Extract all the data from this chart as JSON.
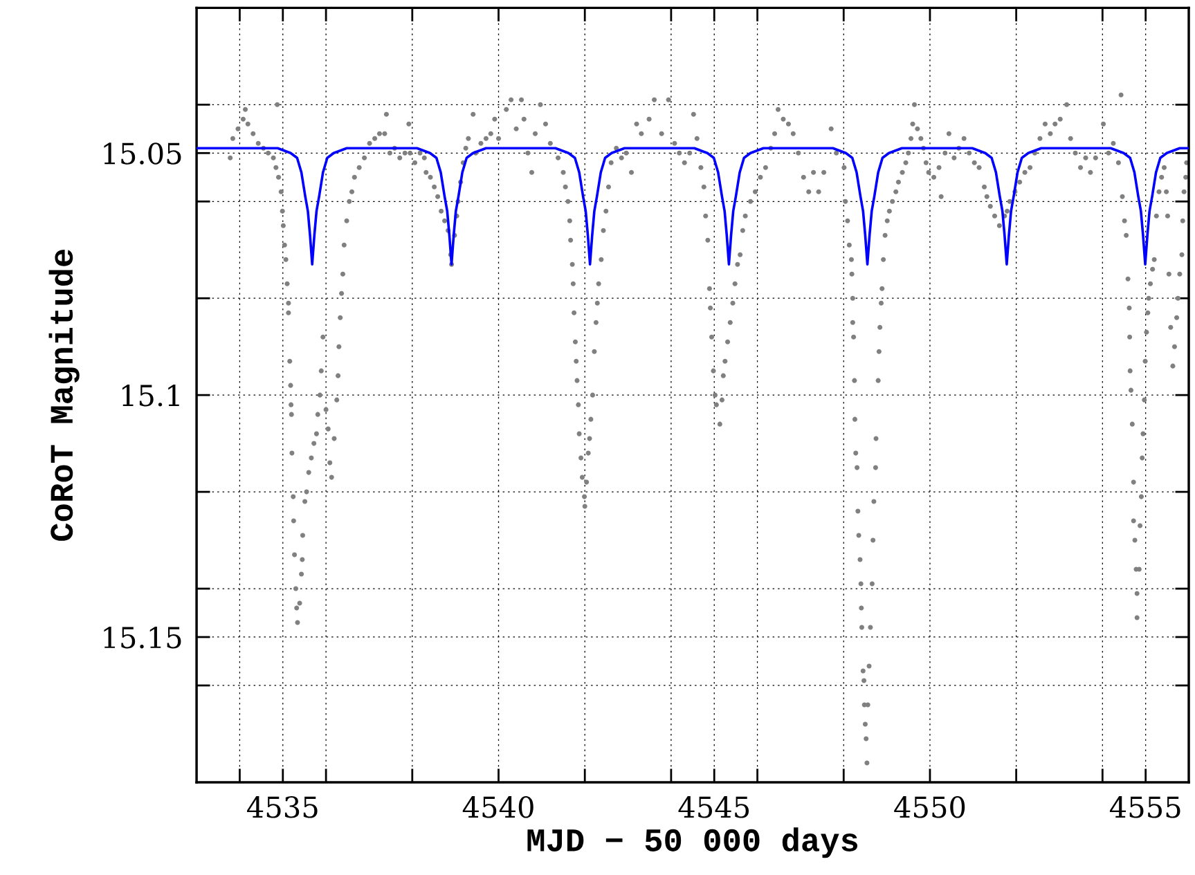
{
  "chart_data": {
    "type": "scatter",
    "xlabel": "MJD − 50 000 days",
    "ylabel": "CoRoT Magnitude",
    "xlim": [
      4533,
      4556
    ],
    "ylim": [
      15.18,
      15.02
    ],
    "xticks": [
      {
        "value": 4534,
        "label": null
      },
      4535,
      {
        "value": 4536,
        "label": null
      },
      {
        "value": 4538,
        "label": null
      },
      4540,
      {
        "value": 4542,
        "label": null
      },
      {
        "value": 4544,
        "label": null
      },
      4545,
      {
        "value": 4546,
        "label": null
      },
      {
        "value": 4548,
        "label": null
      },
      4550,
      {
        "value": 4552,
        "label": null
      },
      {
        "value": 4554,
        "label": null
      },
      4555
    ],
    "yticks": [
      {
        "value": 15.04,
        "label": null
      },
      15.05,
      {
        "value": 15.06,
        "label": null
      },
      {
        "value": 15.08,
        "label": null
      },
      15.1,
      {
        "value": 15.12,
        "label": null
      },
      {
        "value": 15.14,
        "label": null
      },
      15.15,
      {
        "value": 15.16,
        "label": null
      }
    ],
    "grid": true,
    "marker": "circle",
    "series": [
      {
        "color": "#808080",
        "x": [
          4533.78,
          4533.84,
          4533.96,
          4534.08,
          4534.13,
          4534.19,
          4534.31,
          4534.43,
          4534.55,
          4534.66,
          4534.78,
          4534.87,
          4534.84,
          4534.9,
          4534.96,
          4534.99,
          4535.01,
          4535.04,
          4535.07,
          4535.1,
          4535.13,
          4535.13,
          4535.16,
          4535.18,
          4535.19,
          4535.2,
          4535.21,
          4535.24,
          4535.25,
          4535.27,
          4535.3,
          4535.32,
          4535.34,
          4535.39,
          4535.43,
          4535.45,
          4535.46,
          4535.51,
          4535.55,
          4535.6,
          4535.66,
          4535.72,
          4535.78,
          4535.81,
          4535.86,
          4535.89,
          4535.93,
          4536.0,
          4536.05,
          4536.09,
          4536.13,
          4536.19,
          4536.25,
          4536.28,
          4536.3,
          4536.33,
          4536.36,
          4536.39,
          4536.42,
          4536.48,
          4536.54,
          4536.6,
          4536.66,
          4536.77,
          4536.89,
          4537.01,
          4537.13,
          4537.24,
          4537.36,
          4537.4,
          4537.48,
          4537.59,
          4537.71,
          4537.83,
          4537.92,
          4537.95,
          4538.06,
          4538.18,
          4538.28,
          4538.32,
          4538.42,
          4538.51,
          4538.59,
          4538.67,
          4538.75,
          4538.83,
          4538.89,
          4538.91,
          4538.98,
          4539.03,
          4539.06,
          4539.12,
          4539.18,
          4539.24,
          4539.3,
          4539.41,
          4539.47,
          4539.59,
          4539.71,
          4539.82,
          4539.91,
          4540.0,
          4540.18,
          4540.29,
          4540.41,
          4540.53,
          4540.59,
          4540.68,
          4540.77,
          4540.85,
          4540.97,
          4541.09,
          4541.2,
          4541.38,
          4541.5,
          4541.55,
          4541.61,
          4541.65,
          4541.67,
          4541.71,
          4541.73,
          4541.75,
          4541.78,
          4541.8,
          4541.82,
          4541.85,
          4541.87,
          4541.91,
          4541.94,
          4541.99,
          4542.0,
          4542.04,
          4542.08,
          4542.11,
          4542.14,
          4542.18,
          4542.22,
          4542.26,
          4542.29,
          4542.32,
          4542.38,
          4542.43,
          4542.49,
          4542.55,
          4542.61,
          4542.73,
          4542.85,
          4542.96,
          4543.08,
          4543.2,
          4543.31,
          4543.49,
          4543.61,
          4543.78,
          4543.94,
          4544.08,
          4544.19,
          4544.31,
          4544.43,
          4544.52,
          4544.6,
          4544.69,
          4544.76,
          4544.8,
          4544.85,
          4544.89,
          4544.91,
          4544.94,
          4544.98,
          4545.02,
          4545.05,
          4545.13,
          4545.18,
          4545.21,
          4545.25,
          4545.31,
          4545.37,
          4545.43,
          4545.48,
          4545.54,
          4545.6,
          4545.66,
          4545.72,
          4545.84,
          4545.95,
          4546.07,
          4546.19,
          4546.31,
          4546.4,
          4546.48,
          4546.6,
          4546.72,
          4546.83,
          4546.95,
          4547.07,
          4547.19,
          4547.3,
          4547.42,
          4547.54,
          4547.71,
          4547.83,
          4548.01,
          4548.04,
          4548.09,
          4548.13,
          4548.18,
          4548.19,
          4548.21,
          4548.21,
          4548.23,
          4548.25,
          4548.26,
          4548.28,
          4548.31,
          4548.33,
          4548.35,
          4548.38,
          4548.4,
          4548.41,
          4548.42,
          4548.45,
          4548.47,
          4548.48,
          4548.5,
          4548.52,
          4548.54,
          4548.56,
          4548.59,
          4548.62,
          4548.66,
          4548.68,
          4548.7,
          4548.74,
          4548.75,
          4548.8,
          4548.82,
          4548.84,
          4548.87,
          4548.89,
          4548.92,
          4548.96,
          4549.01,
          4549.06,
          4549.13,
          4549.21,
          4549.27,
          4549.36,
          4549.44,
          4549.5,
          4549.56,
          4549.6,
          4549.64,
          4549.71,
          4549.79,
          4549.85,
          4549.91,
          4549.97,
          4550.09,
          4550.21,
          4550.26,
          4550.35,
          4550.44,
          4550.56,
          4550.67,
          4550.79,
          4550.91,
          4551.03,
          4551.14,
          4551.26,
          4551.32,
          4551.4,
          4551.5,
          4551.61,
          4551.73,
          4551.79,
          4551.85,
          4551.97,
          4552.08,
          4552.2,
          4552.32,
          4552.43,
          4552.55,
          4552.67,
          4552.79,
          4552.9,
          4553.02,
          4553.17,
          4553.26,
          4553.37,
          4553.49,
          4553.61,
          4553.72,
          4553.84,
          4554.02,
          4554.14,
          4554.25,
          4554.37,
          4554.43,
          4554.46,
          4554.51,
          4554.55,
          4554.59,
          4554.62,
          4554.63,
          4554.64,
          4554.66,
          4554.69,
          4554.72,
          4554.72,
          4554.75,
          4554.78,
          4554.8,
          4554.8,
          4554.85,
          4554.87,
          4554.9,
          4554.92,
          4554.94,
          4554.97,
          4554.99,
          4555.02,
          4555.05,
          4555.07,
          4555.11,
          4555.16,
          4555.2,
          4555.25,
          4555.31,
          4555.37,
          4555.43,
          4555.48,
          4555.51,
          4555.54,
          4555.58,
          4555.63,
          4555.67,
          4555.72,
          4555.75,
          4555.79,
          4555.84,
          4555.86,
          4555.89,
          4555.93,
          4555.95
        ],
        "values": [
          15.051,
          15.047,
          15.045,
          15.043,
          15.041,
          15.044,
          15.046,
          15.048,
          15.049,
          15.05,
          15.051,
          15.04,
          15.053,
          15.055,
          15.058,
          15.062,
          15.065,
          15.069,
          15.072,
          15.077,
          15.081,
          15.083,
          15.093,
          15.098,
          15.102,
          15.104,
          15.112,
          15.121,
          15.126,
          15.133,
          15.14,
          15.144,
          15.147,
          15.143,
          15.137,
          15.134,
          15.129,
          15.122,
          15.12,
          15.116,
          15.113,
          15.11,
          15.108,
          15.104,
          15.1,
          15.095,
          15.088,
          15.103,
          15.107,
          15.114,
          15.117,
          15.109,
          15.101,
          15.096,
          15.09,
          15.084,
          15.079,
          15.075,
          15.069,
          15.064,
          15.06,
          15.058,
          15.055,
          15.053,
          15.051,
          15.048,
          15.047,
          15.046,
          15.046,
          15.042,
          15.05,
          15.049,
          15.051,
          15.05,
          15.044,
          15.05,
          15.052,
          15.05,
          15.051,
          15.054,
          15.055,
          15.057,
          15.059,
          15.062,
          15.064,
          15.066,
          15.071,
          15.073,
          15.067,
          15.063,
          15.06,
          15.056,
          15.052,
          15.049,
          15.047,
          15.042,
          15.05,
          15.048,
          15.047,
          15.046,
          15.043,
          15.047,
          15.041,
          15.039,
          15.045,
          15.039,
          15.043,
          15.05,
          15.054,
          15.046,
          15.04,
          15.044,
          15.048,
          15.051,
          15.054,
          15.057,
          15.06,
          15.064,
          15.068,
          15.073,
          15.077,
          15.083,
          15.089,
          15.093,
          15.097,
          15.102,
          15.108,
          15.113,
          15.117,
          15.121,
          15.123,
          15.118,
          15.112,
          15.109,
          15.105,
          15.1,
          15.091,
          15.085,
          15.081,
          15.077,
          15.072,
          15.066,
          15.062,
          15.057,
          15.052,
          15.049,
          15.051,
          15.05,
          15.054,
          15.044,
          15.046,
          15.043,
          15.039,
          15.046,
          15.039,
          15.048,
          15.05,
          15.052,
          15.05,
          15.042,
          15.047,
          15.053,
          15.057,
          15.063,
          15.068,
          15.078,
          15.082,
          15.088,
          15.095,
          15.1,
          15.102,
          15.106,
          15.101,
          15.096,
          15.093,
          15.089,
          15.085,
          15.081,
          15.077,
          15.073,
          15.071,
          15.066,
          15.063,
          15.06,
          15.058,
          15.055,
          15.053,
          15.049,
          15.046,
          15.041,
          15.043,
          15.044,
          15.046,
          15.05,
          15.055,
          15.058,
          15.054,
          15.058,
          15.054,
          15.045,
          15.05,
          15.053,
          15.06,
          15.064,
          15.069,
          15.072,
          15.075,
          15.08,
          15.085,
          15.088,
          15.097,
          15.105,
          15.112,
          15.115,
          15.124,
          15.129,
          15.134,
          15.139,
          15.144,
          15.148,
          15.157,
          15.159,
          15.164,
          15.168,
          15.171,
          15.176,
          15.164,
          15.156,
          15.148,
          15.139,
          15.13,
          15.122,
          15.115,
          15.109,
          15.097,
          15.091,
          15.086,
          15.081,
          15.078,
          15.072,
          15.067,
          15.064,
          15.062,
          15.06,
          15.058,
          15.056,
          15.054,
          15.052,
          15.05,
          15.047,
          15.044,
          15.04,
          15.045,
          15.047,
          15.049,
          15.052,
          15.054,
          15.055,
          15.053,
          15.059,
          15.05,
          15.046,
          15.051,
          15.049,
          15.047,
          15.05,
          15.052,
          15.053,
          15.057,
          15.059,
          15.061,
          15.063,
          15.065,
          15.063,
          15.062,
          15.06,
          15.058,
          15.056,
          15.054,
          15.053,
          15.05,
          15.047,
          15.044,
          15.046,
          15.044,
          15.043,
          15.04,
          15.047,
          15.05,
          15.053,
          15.051,
          15.054,
          15.051,
          15.044,
          15.05,
          15.048,
          15.052,
          15.038,
          15.059,
          15.064,
          15.067,
          15.076,
          15.082,
          15.088,
          15.095,
          15.099,
          15.106,
          15.118,
          15.126,
          15.13,
          15.136,
          15.141,
          15.146,
          15.136,
          15.127,
          15.121,
          15.113,
          15.108,
          15.101,
          15.093,
          15.087,
          15.083,
          15.08,
          15.077,
          15.074,
          15.072,
          15.063,
          15.058,
          15.055,
          15.053,
          15.058,
          15.063,
          15.075,
          15.086,
          15.094,
          15.09,
          15.084,
          15.08,
          15.075,
          15.071,
          15.064,
          15.058,
          15.055,
          15.052
        ]
      },
      {
        "type": "line",
        "color": "#0000ff",
        "marker": "none",
        "line_style": "solid",
        "x": [
          4533,
          4534.88,
          4535.18,
          4535.33,
          4535.43,
          4535.52,
          4535.58,
          4535.63,
          4535.68,
          4535.73,
          4535.78,
          4535.84,
          4535.93,
          4536.03,
          4536.18,
          4536.48,
          4538.11,
          4538.41,
          4538.56,
          4538.66,
          4538.75,
          4538.81,
          4538.86,
          4538.91,
          4538.96,
          4539.01,
          4539.07,
          4539.16,
          4539.26,
          4539.41,
          4539.71,
          4541.32,
          4541.62,
          4541.77,
          4541.87,
          4541.96,
          4542.02,
          4542.07,
          4542.12,
          4542.17,
          4542.22,
          4542.28,
          4542.37,
          4542.47,
          4542.62,
          4542.92,
          4544.54,
          4544.84,
          4544.99,
          4545.09,
          4545.18,
          4545.24,
          4545.29,
          4545.34,
          4545.39,
          4545.44,
          4545.5,
          4545.59,
          4545.69,
          4545.84,
          4546.14,
          4547.75,
          4548.05,
          4548.2,
          4548.3,
          4548.39,
          4548.45,
          4548.5,
          4548.55,
          4548.6,
          4548.65,
          4548.71,
          4548.8,
          4548.9,
          4549.05,
          4549.35,
          4550.98,
          4551.28,
          4551.43,
          4551.53,
          4551.62,
          4551.68,
          4551.73,
          4551.78,
          4551.83,
          4551.88,
          4551.94,
          4552.03,
          4552.13,
          4552.28,
          4552.58,
          4554.19,
          4554.49,
          4554.64,
          4554.74,
          4554.83,
          4554.89,
          4554.94,
          4554.99,
          4555.04,
          4555.09,
          4555.15,
          4555.24,
          4555.34,
          4555.49,
          4555.79,
          4556
        ],
        "values": [
          15.049,
          15.049,
          15.05,
          15.051,
          15.054,
          15.059,
          15.062,
          15.067,
          15.073,
          15.067,
          15.062,
          15.059,
          15.054,
          15.051,
          15.05,
          15.049,
          15.049,
          15.05,
          15.051,
          15.054,
          15.059,
          15.062,
          15.067,
          15.073,
          15.067,
          15.062,
          15.059,
          15.054,
          15.051,
          15.05,
          15.049,
          15.049,
          15.05,
          15.051,
          15.054,
          15.059,
          15.062,
          15.067,
          15.073,
          15.067,
          15.062,
          15.059,
          15.054,
          15.051,
          15.05,
          15.049,
          15.049,
          15.05,
          15.051,
          15.054,
          15.059,
          15.062,
          15.067,
          15.073,
          15.067,
          15.062,
          15.059,
          15.054,
          15.051,
          15.05,
          15.049,
          15.049,
          15.05,
          15.051,
          15.054,
          15.059,
          15.062,
          15.067,
          15.073,
          15.067,
          15.062,
          15.059,
          15.054,
          15.051,
          15.05,
          15.049,
          15.049,
          15.05,
          15.051,
          15.054,
          15.059,
          15.062,
          15.067,
          15.073,
          15.067,
          15.062,
          15.059,
          15.054,
          15.051,
          15.05,
          15.049,
          15.049,
          15.05,
          15.051,
          15.054,
          15.059,
          15.062,
          15.067,
          15.073,
          15.067,
          15.062,
          15.059,
          15.054,
          15.051,
          15.05,
          15.049,
          15.049
        ]
      }
    ]
  }
}
